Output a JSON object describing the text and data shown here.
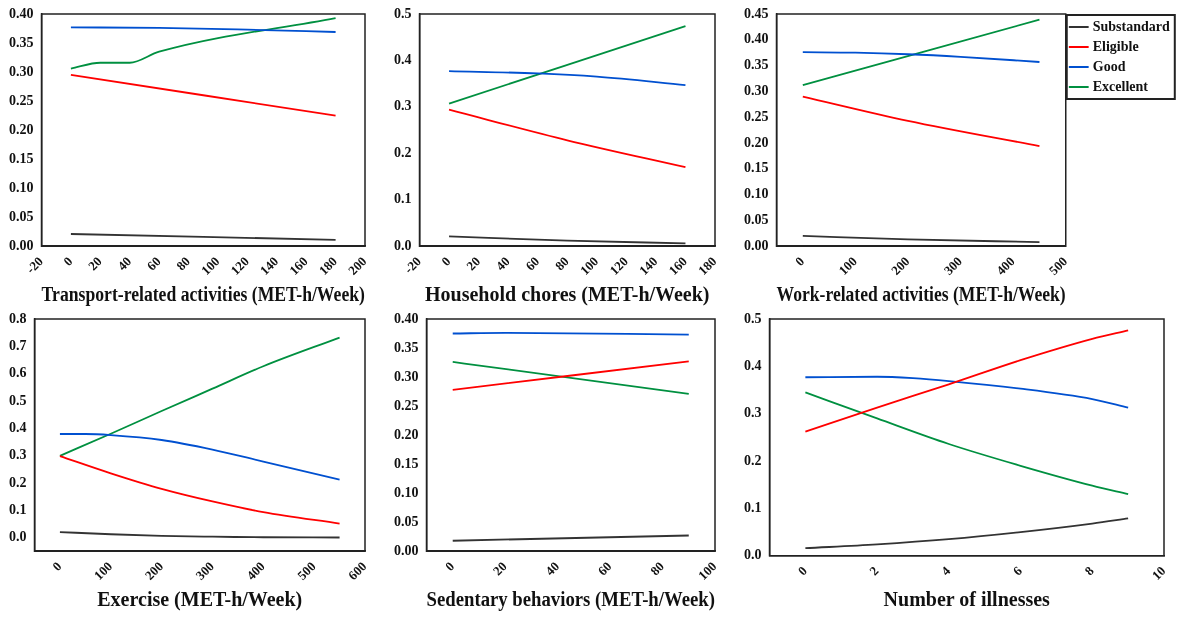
{
  "chart_data": [
    {
      "type": "line",
      "xlabel": "Transport-related activities (MET-h/Week)",
      "xlim": [
        -20,
        200
      ],
      "xticks": [
        -20,
        0,
        20,
        40,
        60,
        80,
        100,
        120,
        140,
        160,
        180,
        200
      ],
      "ylim": [
        0,
        0.4
      ],
      "yticks": [
        {
          "value": 0,
          "label": "0.00"
        },
        {
          "value": 0.05,
          "label": "0.05"
        },
        {
          "value": 0.1,
          "label": "0.10"
        },
        {
          "value": 0.15,
          "label": "0.15"
        },
        {
          "value": 0.2,
          "label": "0.20"
        },
        {
          "value": 0.25,
          "label": "0.25"
        },
        {
          "value": 0.3,
          "label": "0.30"
        },
        {
          "value": 0.35,
          "label": "0.35"
        },
        {
          "value": 0.4,
          "label": "0.40"
        }
      ],
      "grid": false,
      "legend": false,
      "series": [
        {
          "color": "#333333",
          "x": [
            0,
            180
          ],
          "values": [
            0.021,
            0.011
          ]
        },
        {
          "color": "#ff0000",
          "x": [
            0,
            180
          ],
          "values": [
            0.295,
            0.225
          ]
        },
        {
          "color": "#0050d0",
          "x": [
            0,
            60,
            120,
            180
          ],
          "values": [
            0.377,
            0.376,
            0.373,
            0.369
          ]
        },
        {
          "color": "#009040",
          "x": [
            0,
            20,
            40,
            60,
            180
          ],
          "values": [
            0.306,
            0.316,
            0.316,
            0.335,
            0.393
          ]
        }
      ]
    },
    {
      "type": "line",
      "xlabel": "Household chores (MET-h/Week)",
      "xlim": [
        -20,
        180
      ],
      "xticks": [
        -20,
        0,
        20,
        40,
        60,
        80,
        100,
        120,
        140,
        160,
        180
      ],
      "ylim": [
        0,
        0.5
      ],
      "yticks": [
        {
          "value": 0,
          "label": "0.0"
        },
        0.1,
        0.2,
        0.3,
        0.4,
        0.5
      ],
      "grid": false,
      "legend": false,
      "series": [
        {
          "color": "#333333",
          "x": [
            0,
            80,
            160
          ],
          "values": [
            0.021,
            0.012,
            0.006
          ]
        },
        {
          "color": "#ff0000",
          "x": [
            0,
            80,
            160
          ],
          "values": [
            0.294,
            0.228,
            0.17
          ]
        },
        {
          "color": "#0050d0",
          "x": [
            0,
            60,
            100,
            160
          ],
          "values": [
            0.377,
            0.372,
            0.365,
            0.347
          ]
        },
        {
          "color": "#009040",
          "x": [
            0,
            160
          ],
          "values": [
            0.307,
            0.474
          ]
        }
      ]
    },
    {
      "type": "line",
      "xlabel": "Work-related activities (MET-h/Week)",
      "xlim": [
        -50,
        500
      ],
      "xticks": [
        0,
        100,
        200,
        300,
        400,
        500
      ],
      "ylim": [
        0,
        0.45
      ],
      "yticks": [
        {
          "value": 0,
          "label": "0.00"
        },
        {
          "value": 0.05,
          "label": "0.05"
        },
        {
          "value": 0.1,
          "label": "0.10"
        },
        {
          "value": 0.15,
          "label": "0.15"
        },
        {
          "value": 0.2,
          "label": "0.20"
        },
        {
          "value": 0.25,
          "label": "0.25"
        },
        {
          "value": 0.3,
          "label": "0.30"
        },
        {
          "value": 0.35,
          "label": "0.35"
        },
        {
          "value": 0.4,
          "label": "0.40"
        },
        {
          "value": 0.45,
          "label": "0.45"
        }
      ],
      "grid": false,
      "legend": "top right",
      "series": [
        {
          "name": "Substandard",
          "color": "#333333",
          "x": [
            0,
            200,
            450
          ],
          "values": [
            0.02,
            0.013,
            0.008
          ]
        },
        {
          "name": "Eligible",
          "color": "#ff0000",
          "x": [
            0,
            200,
            450
          ],
          "values": [
            0.29,
            0.243,
            0.194
          ]
        },
        {
          "name": "Good",
          "color": "#0050d0",
          "x": [
            0,
            100,
            200,
            300,
            450
          ],
          "values": [
            0.376,
            0.375,
            0.372,
            0.367,
            0.357
          ]
        },
        {
          "name": "Excellent",
          "color": "#009040",
          "x": [
            0,
            450
          ],
          "values": [
            0.312,
            0.439
          ]
        }
      ]
    },
    {
      "type": "line",
      "xlabel": "Exercise (MET-h/Week)",
      "xlim": [
        -50,
        600
      ],
      "xticks": [
        0,
        100,
        200,
        300,
        400,
        500,
        600
      ],
      "ylim": [
        -0.05,
        0.8
      ],
      "yticks": [
        {
          "value": 0,
          "label": "0.0"
        },
        0.1,
        0.2,
        0.3,
        0.4,
        0.5,
        0.6,
        0.7,
        0.8
      ],
      "grid": false,
      "legend": false,
      "series": [
        {
          "color": "#333333",
          "x": [
            0,
            100,
            200,
            300,
            400,
            550
          ],
          "values": [
            0.02,
            0.012,
            0.006,
            0.003,
            0.001,
            0
          ]
        },
        {
          "color": "#ff0000",
          "x": [
            0,
            100,
            200,
            300,
            400,
            550
          ],
          "values": [
            0.298,
            0.235,
            0.178,
            0.132,
            0.093,
            0.051
          ]
        },
        {
          "color": "#0050d0",
          "x": [
            0,
            50,
            100,
            200,
            300,
            400,
            550
          ],
          "values": [
            0.379,
            0.379,
            0.375,
            0.357,
            0.322,
            0.278,
            0.212
          ]
        },
        {
          "color": "#009040",
          "x": [
            0,
            100,
            200,
            300,
            400,
            550
          ],
          "values": [
            0.299,
            0.38,
            0.463,
            0.545,
            0.627,
            0.732
          ]
        }
      ]
    },
    {
      "type": "line",
      "xlabel": "Sedentary behaviors (MET-h/Week)",
      "xlim": [
        -10,
        100
      ],
      "xticks": [
        0,
        20,
        40,
        60,
        80,
        100
      ],
      "ylim": [
        0,
        0.4
      ],
      "yticks": [
        {
          "value": 0,
          "label": "0.00"
        },
        {
          "value": 0.05,
          "label": "0.05"
        },
        {
          "value": 0.1,
          "label": "0.10"
        },
        {
          "value": 0.15,
          "label": "0.15"
        },
        {
          "value": 0.2,
          "label": "0.20"
        },
        {
          "value": 0.25,
          "label": "0.25"
        },
        {
          "value": 0.3,
          "label": "0.30"
        },
        {
          "value": 0.35,
          "label": "0.35"
        },
        {
          "value": 0.4,
          "label": "0.40"
        }
      ],
      "grid": false,
      "legend": false,
      "series": [
        {
          "color": "#333333",
          "x": [
            0,
            90
          ],
          "values": [
            0.018,
            0.027
          ]
        },
        {
          "color": "#ff0000",
          "x": [
            0,
            90
          ],
          "values": [
            0.278,
            0.327
          ]
        },
        {
          "color": "#0050d0",
          "x": [
            0,
            20,
            90
          ],
          "values": [
            0.375,
            0.376,
            0.373
          ]
        },
        {
          "color": "#009040",
          "x": [
            0,
            90
          ],
          "values": [
            0.326,
            0.271
          ]
        }
      ]
    },
    {
      "type": "line",
      "xlabel": "Number of illnesses",
      "xlim": [
        -1,
        10
      ],
      "xticks": [
        0,
        2,
        4,
        6,
        8,
        10
      ],
      "ylim": [
        0,
        0.5
      ],
      "yticks": [
        {
          "value": 0,
          "label": "0.0"
        },
        0.1,
        0.2,
        0.3,
        0.4,
        0.5
      ],
      "grid": false,
      "legend": false,
      "series": [
        {
          "color": "#333333",
          "x": [
            0,
            2,
            4,
            6,
            8,
            9
          ],
          "values": [
            0.016,
            0.024,
            0.035,
            0.05,
            0.068,
            0.079
          ]
        },
        {
          "color": "#ff0000",
          "x": [
            0,
            2,
            4,
            6,
            8,
            9
          ],
          "values": [
            0.262,
            0.313,
            0.362,
            0.413,
            0.458,
            0.476
          ]
        },
        {
          "color": "#0050d0",
          "x": [
            0,
            2,
            3,
            4,
            6,
            8,
            9
          ],
          "values": [
            0.377,
            0.378,
            0.375,
            0.369,
            0.353,
            0.331,
            0.313
          ]
        },
        {
          "color": "#009040",
          "x": [
            0,
            2,
            4,
            6,
            8,
            9
          ],
          "values": [
            0.345,
            0.29,
            0.236,
            0.19,
            0.148,
            0.13
          ]
        }
      ]
    }
  ]
}
